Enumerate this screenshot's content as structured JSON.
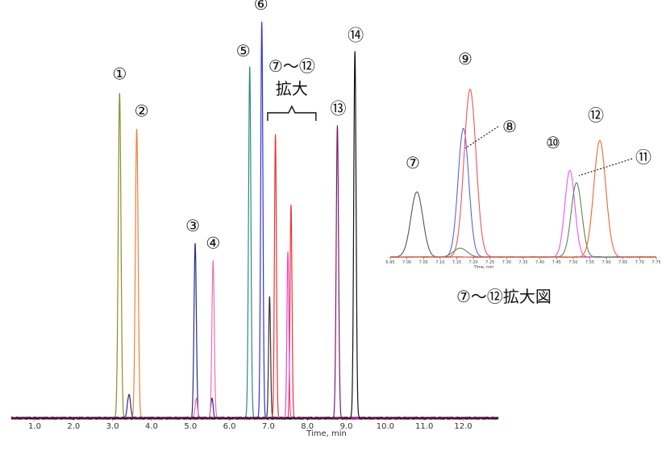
{
  "chart_data": [
    {
      "type": "line",
      "xlabel": "Time, min",
      "xlim": [
        0.4,
        12.9
      ],
      "x_ticks": [
        "1.0",
        "2.0",
        "3.0",
        "4.0",
        "5.0",
        "6.0",
        "7.0",
        "8.0",
        "9.0",
        "10.0",
        "11.0",
        "12.0"
      ],
      "series": [
        {
          "color": "#8c8c2a",
          "peaks": [
            {
              "rt": 3.18,
              "h": 0.82,
              "w": 0.035
            }
          ]
        },
        {
          "color": "#f07f3c",
          "peaks": [
            {
              "rt": 3.62,
              "h": 0.73,
              "w": 0.035
            }
          ]
        },
        {
          "color": "#2b2b8c",
          "peaks": [
            {
              "rt": 5.12,
              "h": 0.44,
              "w": 0.03
            },
            {
              "rt": 3.42,
              "h": 0.06,
              "w": 0.04
            },
            {
              "rt": 5.55,
              "h": 0.05,
              "w": 0.03
            }
          ]
        },
        {
          "color": "#ee6fb4",
          "peaks": [
            {
              "rt": 5.58,
              "h": 0.4,
              "w": 0.03
            },
            {
              "rt": 5.15,
              "h": 0.05,
              "w": 0.03
            }
          ]
        },
        {
          "color": "#2a8c7f",
          "peaks": [
            {
              "rt": 6.52,
              "h": 0.89,
              "w": 0.03
            }
          ]
        },
        {
          "color": "#3333dd",
          "peaks": [
            {
              "rt": 6.83,
              "h": 1.0,
              "w": 0.028
            }
          ]
        },
        {
          "color": "#333333",
          "peaks": [
            {
              "rt": 7.03,
              "h": 0.31,
              "w": 0.025
            }
          ]
        },
        {
          "color": "#ee3333",
          "peaks": [
            {
              "rt": 7.18,
              "h": 0.72,
              "w": 0.025
            },
            {
              "rt": 7.58,
              "h": 0.54,
              "w": 0.025
            }
          ]
        },
        {
          "color": "#ee44dd",
          "peaks": [
            {
              "rt": 7.5,
              "h": 0.42,
              "w": 0.025
            }
          ]
        },
        {
          "color": "#7c1a6e",
          "peaks": [
            {
              "rt": 8.77,
              "h": 0.74,
              "w": 0.03
            }
          ]
        },
        {
          "color": "#111111",
          "peaks": [
            {
              "rt": 9.22,
              "h": 0.93,
              "w": 0.03
            }
          ]
        }
      ],
      "annotations": [
        {
          "text": "①",
          "color": "#8c8c2a"
        },
        {
          "text": "②",
          "color": "#f07f3c"
        },
        {
          "text": "③",
          "color": "#2b2b8c"
        },
        {
          "text": "④",
          "color": "#ee6fb4"
        },
        {
          "text": "⑤",
          "color": "#2a8c7f"
        },
        {
          "text": "⑥",
          "color": "#3333dd"
        },
        {
          "text": "⑬",
          "color": "#7c1a6e"
        },
        {
          "text": "⑭",
          "color": "#111111"
        }
      ],
      "zoom_label_top": "⑦〜⑫",
      "zoom_label_bottom": "拡大"
    },
    {
      "type": "line",
      "title": "⑦〜⑫拡大図",
      "xlabel": "Time, min",
      "xlim": [
        6.95,
        7.75
      ],
      "x_ticks": [
        "6.95",
        "7.00",
        "7.05",
        "7.10",
        "7.15",
        "7.20",
        "7.25",
        "7.30",
        "7.35",
        "7.40",
        "7.45",
        "7.50",
        "7.55",
        "7.60",
        "7.65",
        "7.70",
        "7.75"
      ],
      "series": [
        {
          "color": "#555555",
          "peaks": [
            {
              "rt": 7.03,
              "h": 0.37,
              "w": 0.018
            }
          ]
        },
        {
          "color": "#5566dd",
          "peaks": [
            {
              "rt": 7.17,
              "h": 0.73,
              "w": 0.016
            }
          ]
        },
        {
          "color": "#ee5555",
          "peaks": [
            {
              "rt": 7.19,
              "h": 0.95,
              "w": 0.018
            }
          ]
        },
        {
          "color": "#ee55ee",
          "peaks": [
            {
              "rt": 7.49,
              "h": 0.49,
              "w": 0.015
            }
          ]
        },
        {
          "color": "#558855",
          "peaks": [
            {
              "rt": 7.51,
              "h": 0.42,
              "w": 0.016
            },
            {
              "rt": 7.16,
              "h": 0.05,
              "w": 0.02
            }
          ]
        },
        {
          "color": "#ee6633",
          "peaks": [
            {
              "rt": 7.58,
              "h": 0.66,
              "w": 0.018
            }
          ]
        }
      ],
      "annotations": [
        {
          "text": "⑦",
          "color": "#555555"
        },
        {
          "text": "⑧",
          "color": "#5566dd"
        },
        {
          "text": "⑨",
          "color": "#ee5555"
        },
        {
          "text": "⑩",
          "color": "#ee55ee"
        },
        {
          "text": "⑪",
          "color": "#558855"
        },
        {
          "text": "⑫",
          "color": "#ee6633"
        }
      ]
    }
  ]
}
